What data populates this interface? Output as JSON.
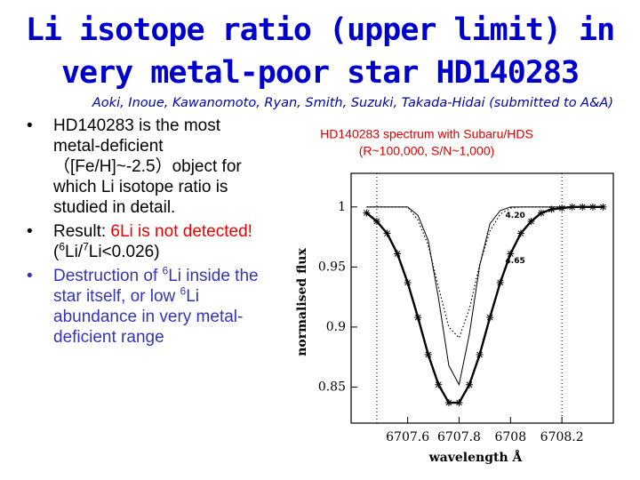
{
  "header": {
    "title_lines": [
      "Li isotope ratio (upper limit) in",
      "very metal-poor star HD140283"
    ],
    "authors": "Aoki, Inoue, Kawanomoto, Ryan, Smith, Suzuki, Takada-Hidai (submitted to A&A)"
  },
  "bullets": [
    [
      "HD140283 is the most metal-deficient（[Fe/H]~-2.5）object for which Li isotope ratio is studied in detail."
    ],
    [
      "Result: ",
      "6Li is not detected!",
      "(",
      "6",
      "Li/",
      "7",
      "Li<0.026)"
    ],
    [
      "Destruction of ",
      "6",
      "Li inside the star itself, or low ",
      "6",
      "Li abundance in very metal-deficient range"
    ]
  ],
  "chart_data": {
    "type": "line",
    "title": "HD140283 spectrum with Subaru/HDS",
    "subtitle": "(R~100,000, S/N~1,000)",
    "x_label": "wavelength Å",
    "y_label": "normalised flux",
    "xlim": [
      6707.38,
      6708.4
    ],
    "ylim": [
      0.82,
      1.028
    ],
    "xticks": [
      6707.6,
      6707.8,
      6708,
      6708.2
    ],
    "yticks": [
      0.85,
      0.9,
      0.95,
      1
    ],
    "vlines": [
      6707.48,
      6708.2
    ],
    "x": [
      6707.44,
      6707.48,
      6707.52,
      6707.56,
      6707.6,
      6707.64,
      6707.68,
      6707.72,
      6707.76,
      6707.8,
      6707.84,
      6707.88,
      6707.92,
      6707.96,
      6708.0,
      6708.04,
      6708.08,
      6708.12,
      6708.16,
      6708.2,
      6708.24,
      6708.28,
      6708.32,
      6708.36
    ],
    "series": [
      {
        "color": "#000000",
        "style": "observed",
        "values": [
          0.995,
          0.988,
          0.978,
          0.961,
          0.937,
          0.908,
          0.877,
          0.852,
          0.837,
          0.837,
          0.852,
          0.877,
          0.908,
          0.937,
          0.961,
          0.978,
          0.988,
          0.995,
          0.998,
          0.999,
          1.0,
          1.0,
          1.0,
          1.0
        ]
      },
      {
        "color": "#000000",
        "style": "solid",
        "values": [
          1.0,
          1.0,
          1.0,
          1.0,
          1.0,
          0.993,
          0.972,
          0.924,
          0.868,
          0.852,
          0.894,
          0.951,
          0.986,
          0.997,
          1.0,
          1.0,
          1.0,
          1.0,
          1.0,
          1.0,
          1.0,
          1.0,
          1.0,
          1.0
        ]
      },
      {
        "color": "#000000",
        "style": "dotted",
        "values": [
          1.0,
          1.0,
          1.0,
          1.0,
          1.0,
          0.989,
          0.968,
          0.933,
          0.9,
          0.891,
          0.915,
          0.952,
          0.98,
          0.994,
          0.999,
          1.0,
          1.0,
          1.0,
          1.0,
          1.0,
          1.0,
          1.0,
          1.0,
          1.0
        ]
      }
    ],
    "annotations": [
      {
        "text": "4.20",
        "x": 6707.98,
        "y": 0.993
      },
      {
        "text": "4.65",
        "x": 6707.98,
        "y": 0.955
      }
    ]
  }
}
